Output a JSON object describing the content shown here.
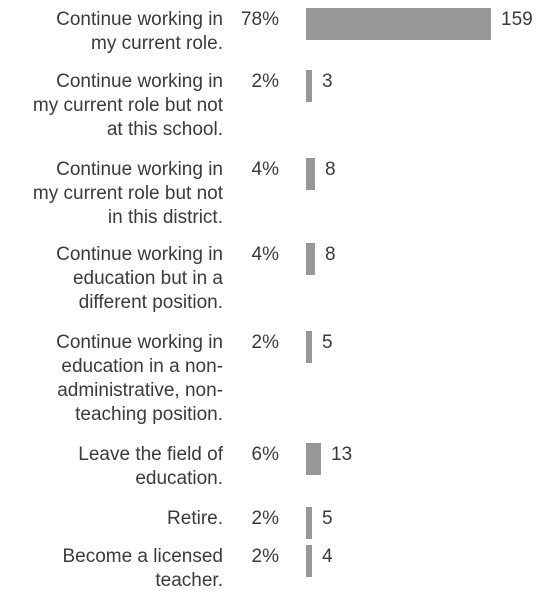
{
  "chart_data": {
    "type": "bar",
    "orientation": "horizontal",
    "categories": [
      "Continue working in\nmy current role.",
      "Continue working in\nmy current role but not\nat this school.",
      "Continue working in\nmy current role but not\nin this district.",
      "Continue working in\neducation but in a\ndifferent position.",
      "Continue working in\neducation in a non-\nadministrative, non-\nteaching position.",
      "Leave the field of\neducation.",
      "Retire.",
      "Become a licensed\nteacher."
    ],
    "percentages": [
      "78%",
      "2%",
      "4%",
      "4%",
      "2%",
      "6%",
      "2%",
      "2%"
    ],
    "values": [
      159,
      3,
      8,
      8,
      5,
      13,
      5,
      4
    ],
    "value_labels": [
      "159",
      "3",
      "8",
      "8",
      "5",
      "13",
      "5",
      "4"
    ],
    "xlim": [
      0,
      159
    ],
    "bar_color": "#979797",
    "text_color": "#3a3a3a",
    "grid": false,
    "legend": "none"
  }
}
